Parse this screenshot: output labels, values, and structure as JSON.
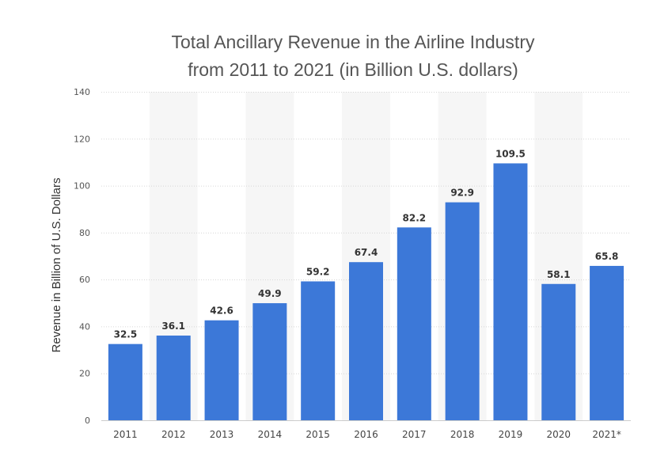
{
  "chart_data": {
    "type": "bar",
    "title_lines": [
      "Total Ancillary Revenue in the Airline Industry",
      "from 2011 to 2021 (in Billion U.S. dollars)"
    ],
    "xlabel": "",
    "ylabel": "Revenue in Billion of U.S. Dollars",
    "ylim": [
      0,
      140
    ],
    "yticks": [
      0,
      20,
      40,
      60,
      80,
      100,
      120,
      140
    ],
    "grid": true,
    "legend": "none",
    "bar_color": "#3c78d8",
    "categories": [
      "2011",
      "2012",
      "2013",
      "2014",
      "2015",
      "2016",
      "2017",
      "2018",
      "2019",
      "2020",
      "2021*"
    ],
    "values": [
      32.5,
      36.1,
      42.6,
      49.9,
      59.2,
      67.4,
      82.2,
      92.9,
      109.5,
      58.1,
      65.8
    ],
    "data_labels": [
      "32.5",
      "36.1",
      "42.6",
      "49.9",
      "59.2",
      "67.4",
      "82.2",
      "92.9",
      "109.5",
      "58.1",
      "65.8"
    ]
  }
}
